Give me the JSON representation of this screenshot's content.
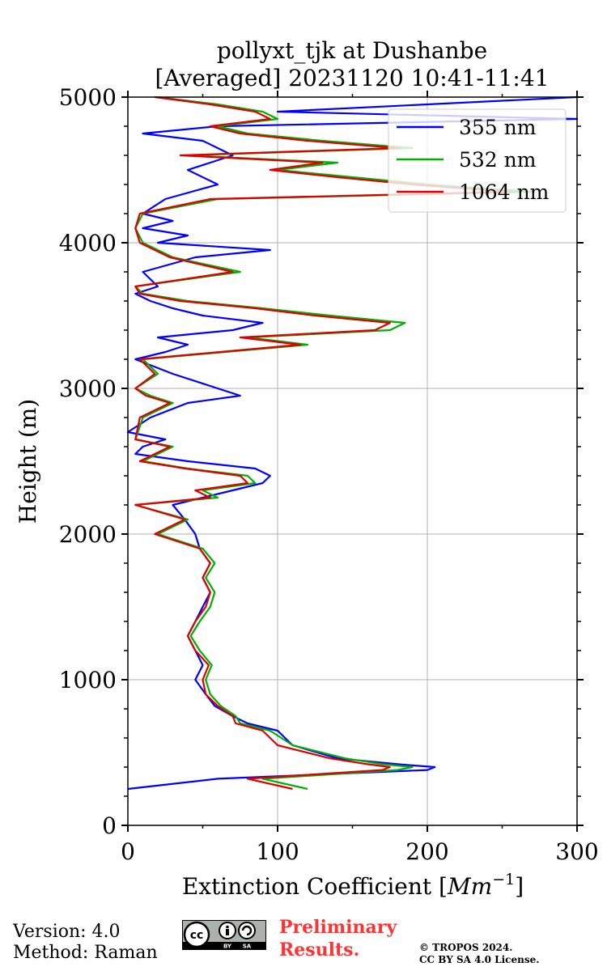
{
  "chart_data": {
    "type": "line",
    "title": "pollyxt_tjk at Dushanbe",
    "subtitle": "[Averaged] 20231120 10:41-11:41",
    "xlabel": "Extinction Coefficient [Mm⁻¹]",
    "xlabel_main": "Extinction Coefficient [",
    "xlabel_unit": "Mm",
    "xlabel_exp": "−1",
    "xlabel_close": "]",
    "ylabel": "Height (m)",
    "xlim": [
      0,
      300
    ],
    "ylim": [
      0,
      5000
    ],
    "xticks": [
      0,
      100,
      200,
      300
    ],
    "yticks": [
      0,
      1000,
      2000,
      3000,
      4000,
      5000
    ],
    "grid": true,
    "legend_position": "top-right",
    "series": [
      {
        "name": "355 nm",
        "color": "#0000ff",
        "heights": [
          250,
          320,
          380,
          400,
          420,
          460,
          550,
          650,
          700,
          750,
          820,
          900,
          1000,
          1100,
          1200,
          1300,
          1400,
          1500,
          1600,
          1700,
          1800,
          1900,
          2000,
          2100,
          2200,
          2300,
          2350,
          2400,
          2450,
          2500,
          2550,
          2600,
          2650,
          2700,
          2800,
          2900,
          2950,
          3000,
          3100,
          3200,
          3250,
          3300,
          3350,
          3400,
          3450,
          3500,
          3550,
          3600,
          3650,
          3700,
          3800,
          3900,
          3950,
          4000,
          4050,
          4100,
          4150,
          4200,
          4300,
          4400,
          4500,
          4600,
          4700,
          4750,
          4800,
          4850,
          4900,
          4950,
          5000
        ],
        "values": [
          0,
          60,
          200,
          205,
          180,
          140,
          110,
          100,
          80,
          70,
          58,
          52,
          45,
          50,
          45,
          40,
          45,
          50,
          55,
          50,
          55,
          48,
          45,
          38,
          30,
          70,
          90,
          95,
          85,
          40,
          5,
          10,
          25,
          0,
          15,
          40,
          75,
          60,
          30,
          5,
          25,
          40,
          20,
          70,
          90,
          50,
          30,
          15,
          5,
          20,
          10,
          45,
          95,
          20,
          40,
          10,
          30,
          10,
          25,
          60,
          40,
          70,
          50,
          10,
          60,
          300,
          100,
          200,
          300
        ]
      },
      {
        "name": "532 nm",
        "color": "#00b000",
        "heights": [
          250,
          320,
          380,
          400,
          420,
          460,
          550,
          650,
          700,
          750,
          820,
          900,
          1000,
          1100,
          1200,
          1300,
          1400,
          1500,
          1600,
          1700,
          1800,
          1900,
          2000,
          2100,
          2200,
          2250,
          2300,
          2350,
          2400,
          2450,
          2500,
          2550,
          2600,
          2650,
          2800,
          2900,
          2950,
          3000,
          3100,
          3200,
          3300,
          3350,
          3400,
          3450,
          3500,
          3550,
          3600,
          3650,
          3700,
          3800,
          3900,
          4000,
          4100,
          4200,
          4300,
          4350,
          4400,
          4450,
          4500,
          4550,
          4600,
          4650,
          4700,
          4750,
          4800,
          4850,
          4900,
          4950,
          5000
        ],
        "values": [
          120,
          90,
          180,
          190,
          170,
          145,
          110,
          95,
          75,
          72,
          62,
          55,
          52,
          56,
          48,
          42,
          48,
          55,
          58,
          52,
          58,
          50,
          20,
          40,
          5,
          60,
          50,
          85,
          80,
          40,
          10,
          20,
          30,
          5,
          10,
          30,
          15,
          5,
          20,
          10,
          120,
          80,
          175,
          185,
          135,
          90,
          40,
          10,
          5,
          75,
          30,
          10,
          5,
          10,
          60,
          270,
          200,
          150,
          100,
          140,
          40,
          190,
          130,
          80,
          60,
          100,
          90,
          60,
          20
        ]
      },
      {
        "name": "1064 nm",
        "color": "#dd0000",
        "heights": [
          250,
          320,
          380,
          400,
          420,
          460,
          550,
          650,
          700,
          750,
          820,
          900,
          1000,
          1100,
          1200,
          1300,
          1400,
          1500,
          1600,
          1700,
          1800,
          1900,
          2000,
          2100,
          2200,
          2250,
          2300,
          2350,
          2400,
          2450,
          2500,
          2550,
          2600,
          2650,
          2800,
          2900,
          2950,
          3000,
          3100,
          3200,
          3300,
          3350,
          3400,
          3450,
          3500,
          3550,
          3600,
          3650,
          3700,
          3800,
          3900,
          4000,
          4100,
          4200,
          4300,
          4350,
          4400,
          4450,
          4500,
          4550,
          4600,
          4650,
          4700,
          4750,
          4800,
          4850,
          4900,
          4950,
          5000
        ],
        "values": [
          110,
          80,
          170,
          175,
          160,
          135,
          100,
          90,
          72,
          70,
          60,
          52,
          50,
          54,
          45,
          40,
          45,
          52,
          55,
          50,
          55,
          48,
          18,
          38,
          5,
          55,
          45,
          80,
          75,
          38,
          8,
          18,
          28,
          5,
          8,
          28,
          12,
          5,
          18,
          8,
          115,
          75,
          165,
          175,
          125,
          85,
          35,
          8,
          5,
          70,
          28,
          8,
          5,
          8,
          55,
          255,
          190,
          140,
          95,
          130,
          35,
          180,
          120,
          75,
          55,
          95,
          85,
          55,
          18
        ]
      }
    ]
  },
  "footer": {
    "version": "Version: 4.0",
    "method": "Method: Raman",
    "preliminary_line1": "Preliminary",
    "preliminary_line2": "Results.",
    "copyright_line1": "© TROPOS 2024.",
    "copyright_line2": "CC BY SA 4.0 License.",
    "license_badge": {
      "cc": "cc",
      "by": "BY",
      "sa": "SA"
    }
  }
}
